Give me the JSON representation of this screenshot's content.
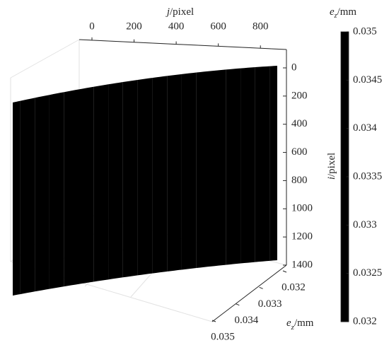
{
  "chart_data": {
    "type": "surface",
    "colormap": "parula",
    "xlabel": {
      "symbol": "j",
      "rest": "/pixel"
    },
    "ylabel": {
      "symbol": "i",
      "rest": "/pixel"
    },
    "zlabel": {
      "symbol": "e",
      "subscript": "z",
      "rest": "/mm"
    },
    "colorbar_label": {
      "symbol": "e",
      "subscript": "z",
      "rest": "/mm"
    },
    "x": [
      0,
      50,
      100,
      150,
      200,
      250,
      300,
      350,
      400,
      450,
      500,
      550,
      600,
      650,
      700,
      750,
      800,
      850,
      900
    ],
    "values": [
      0.035,
      0.03483,
      0.03467,
      0.0345,
      0.03433,
      0.03417,
      0.034,
      0.03383,
      0.03367,
      0.0335,
      0.03333,
      0.03317,
      0.033,
      0.03283,
      0.03267,
      0.0325,
      0.03233,
      0.03217,
      0.032
    ],
    "xlim": [
      0,
      900
    ],
    "xticks": [
      0,
      200,
      400,
      600,
      800
    ],
    "ylim": [
      0,
      1400
    ],
    "yticks": [
      0,
      200,
      400,
      600,
      800,
      1000,
      1200,
      1400
    ],
    "zlim": [
      0.032,
      0.035
    ],
    "zticks": [
      0.032,
      0.033,
      0.034,
      0.035
    ],
    "clim": [
      0.032,
      0.035
    ],
    "cticks": [
      0.032,
      0.0325,
      0.033,
      0.0335,
      0.034,
      0.0345,
      0.035
    ]
  }
}
